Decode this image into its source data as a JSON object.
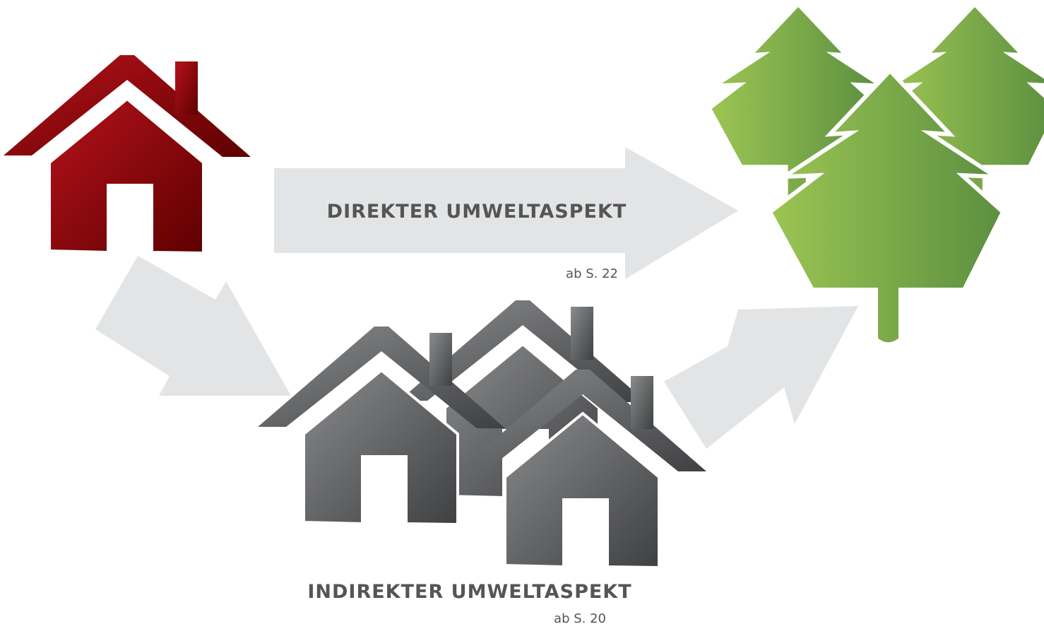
{
  "direct": {
    "label": "DIREKTER UMWELTASPEKT",
    "page": "ab S. 22"
  },
  "indirect": {
    "label": "INDIREKTER UMWELTASPEKT",
    "page": "ab S. 20"
  }
}
